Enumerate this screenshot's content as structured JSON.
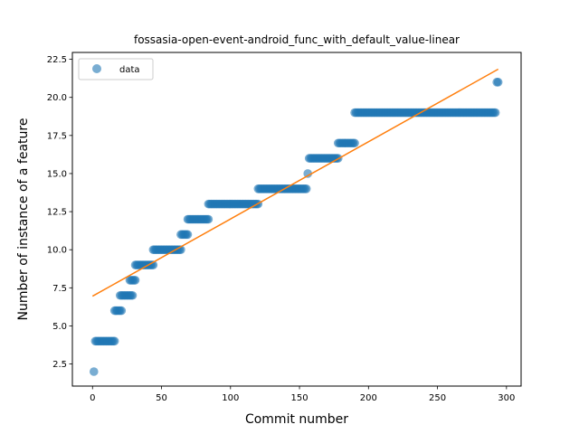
{
  "chart_data": {
    "type": "scatter",
    "title": "fossasia-open-event-android_func_with_default_value-linear",
    "xlabel": "Commit number",
    "ylabel": "Number of instance of a feature",
    "xlim": [
      -14.6,
      310.6
    ],
    "ylim": [
      1.05,
      22.95
    ],
    "xticks": [
      0,
      50,
      100,
      150,
      200,
      250,
      300
    ],
    "xtick_labels": [
      "0",
      "50",
      "100",
      "150",
      "200",
      "250",
      "300"
    ],
    "yticks": [
      2.5,
      5.0,
      7.5,
      10.0,
      12.5,
      15.0,
      17.5,
      20.0,
      22.5
    ],
    "ytick_labels": [
      "2.5",
      "5.0",
      "7.5",
      "10.0",
      "12.5",
      "15.0",
      "17.5",
      "20.0",
      "22.5"
    ],
    "grid": false,
    "legend_position": "top-left",
    "series": [
      {
        "name": "data",
        "kind": "points",
        "color": "#1f77b4",
        "segments": [
          {
            "x_start": 1,
            "x_end": 1,
            "y": 2
          },
          {
            "x_start": 2,
            "x_end": 16,
            "y": 4
          },
          {
            "x_start": 16,
            "x_end": 21,
            "y": 6
          },
          {
            "x_start": 20,
            "x_end": 29,
            "y": 7
          },
          {
            "x_start": 27,
            "x_end": 31,
            "y": 8
          },
          {
            "x_start": 31,
            "x_end": 44,
            "y": 9
          },
          {
            "x_start": 44,
            "x_end": 64,
            "y": 10
          },
          {
            "x_start": 64,
            "x_end": 69,
            "y": 11
          },
          {
            "x_start": 69,
            "x_end": 84,
            "y": 12
          },
          {
            "x_start": 84,
            "x_end": 120,
            "y": 13
          },
          {
            "x_start": 120,
            "x_end": 155,
            "y": 14
          },
          {
            "x_start": 156,
            "x_end": 156,
            "y": 15
          },
          {
            "x_start": 157,
            "x_end": 178,
            "y": 16
          },
          {
            "x_start": 178,
            "x_end": 190,
            "y": 17
          },
          {
            "x_start": 190,
            "x_end": 292,
            "y": 19
          },
          {
            "x_start": 293,
            "x_end": 294,
            "y": 21
          }
        ]
      },
      {
        "kind": "line",
        "color": "#ff7f0e",
        "x": [
          0,
          294
        ],
        "y": [
          6.95,
          21.85
        ]
      }
    ]
  }
}
